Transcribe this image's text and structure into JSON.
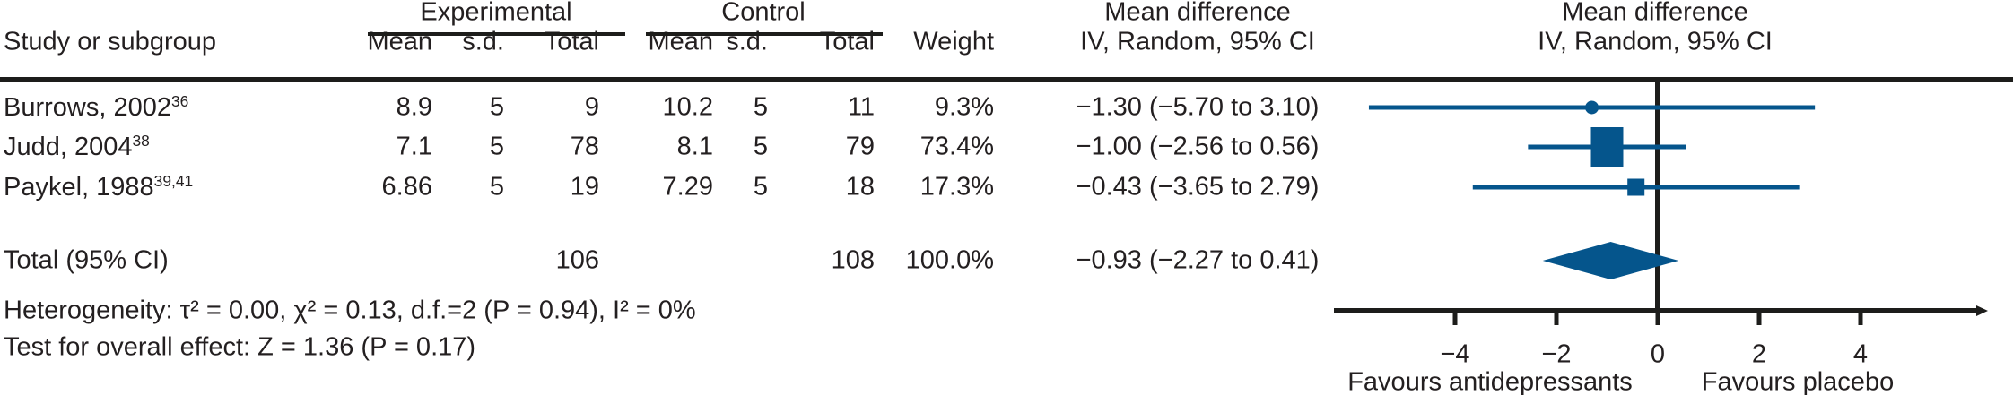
{
  "table": {
    "study_header": "Study or subgroup",
    "group_experimental": "Experimental",
    "group_control": "Control",
    "col_mean": "Mean",
    "col_sd": "s.d.",
    "col_total": "Total",
    "col_weight": "Weight",
    "md_header": "Mean difference",
    "md_subheader": "IV, Random, 95% CI"
  },
  "footer": {
    "heterogeneity": "Heterogeneity: τ² = 0.00, χ² = 0.13, d.f.=2 (P = 0.94), I² = 0%",
    "overall_effect": "Test for overall effect: Z = 1.36 (P = 0.17)"
  },
  "chart_data": {
    "type": "forest",
    "title": "Mean difference",
    "subtitle": "IV, Random, 95% CI",
    "axis": {
      "ticks": [
        -4,
        -2,
        0,
        2,
        4
      ],
      "range": [
        -6.4,
        6.4
      ],
      "label_left": "Favours antidepressants",
      "label_right": "Favours placebo"
    },
    "colors": {
      "marker_blue": "#05558c",
      "line_black": "#1d1d1b"
    },
    "studies": [
      {
        "study": "Burrows, 2002",
        "refs": "36",
        "exp": {
          "mean": "8.9",
          "sd": "5",
          "total": "9"
        },
        "ctrl": {
          "mean": "10.2",
          "sd": "5",
          "total": "11"
        },
        "weight": "9.3%",
        "md": -1.3,
        "ci": [
          -5.7,
          3.1
        ],
        "md_text": "−1.30 (−5.70 to 3.10)",
        "marker": {
          "shape": "circle",
          "d": 15
        }
      },
      {
        "study": "Judd, 2004",
        "refs": "38",
        "exp": {
          "mean": "7.1",
          "sd": "5",
          "total": "78"
        },
        "ctrl": {
          "mean": "8.1",
          "sd": "5",
          "total": "79"
        },
        "weight": "73.4%",
        "md": -1.0,
        "ci": [
          -2.56,
          0.56
        ],
        "md_text": "−1.00 (−2.56 to 0.56)",
        "marker": {
          "shape": "square",
          "w": 36,
          "h": 44
        }
      },
      {
        "study": "Paykel, 1988",
        "refs": "39,41",
        "exp": {
          "mean": "6.86",
          "sd": "5",
          "total": "19"
        },
        "ctrl": {
          "mean": "7.29",
          "sd": "5",
          "total": "18"
        },
        "weight": "17.3%",
        "md": -0.43,
        "ci": [
          -3.65,
          2.79
        ],
        "md_text": "−0.43 (−3.65 to 2.79)",
        "marker": {
          "shape": "square",
          "w": 19,
          "h": 19
        }
      }
    ],
    "total": {
      "label": "Total (95% CI)",
      "exp_total": "106",
      "ctrl_total": "108",
      "weight": "100.0%",
      "md": -0.93,
      "ci": [
        -2.27,
        0.41
      ],
      "md_text": "−0.93 (−2.27 to 0.41)"
    }
  }
}
